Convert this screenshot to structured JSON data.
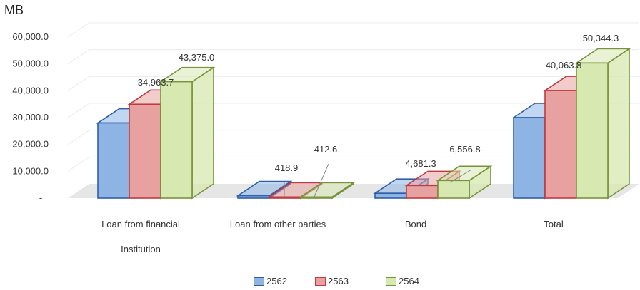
{
  "chart_data": {
    "type": "bar",
    "unit_label": "MB",
    "categories": [
      "Loan from financial Institution",
      "Loan from other parties",
      "Bond",
      "Total"
    ],
    "series": [
      {
        "name": "2562",
        "values": [
          28000,
          900,
          1800,
          30000
        ],
        "color": "#8EB4E3",
        "edge": "#2E5FA8"
      },
      {
        "name": "2563",
        "values": [
          34963.7,
          418.9,
          4681.3,
          40063.8
        ],
        "color": "#E8A1A1",
        "edge": "#C0393E"
      },
      {
        "name": "2564",
        "values": [
          43375.0,
          412.6,
          6556.8,
          50344.3
        ],
        "color": "#D7E8B0",
        "edge": "#77933C"
      }
    ],
    "data_labels": [
      {
        "category": 0,
        "series": 1,
        "text": "34,963.7"
      },
      {
        "category": 0,
        "series": 2,
        "text": "43,375.0"
      },
      {
        "category": 1,
        "series": 1,
        "text": "418.9"
      },
      {
        "category": 1,
        "series": 2,
        "text": "412.6"
      },
      {
        "category": 2,
        "series": 1,
        "text": "4,681.3"
      },
      {
        "category": 2,
        "series": 2,
        "text": "6,556.8"
      },
      {
        "category": 3,
        "series": 1,
        "text": "40,063.8"
      },
      {
        "category": 3,
        "series": 2,
        "text": "50,344.3"
      }
    ],
    "yticks": [
      0,
      10000,
      20000,
      30000,
      40000,
      50000,
      60000
    ],
    "ytick_labels": [
      "-",
      "10,000.0",
      "20,000.0",
      "30,000.0",
      "40,000.0",
      "50,000.0",
      "60,000.0"
    ],
    "ylim": [
      0,
      60000
    ],
    "grid": true,
    "legend_position": "bottom"
  }
}
